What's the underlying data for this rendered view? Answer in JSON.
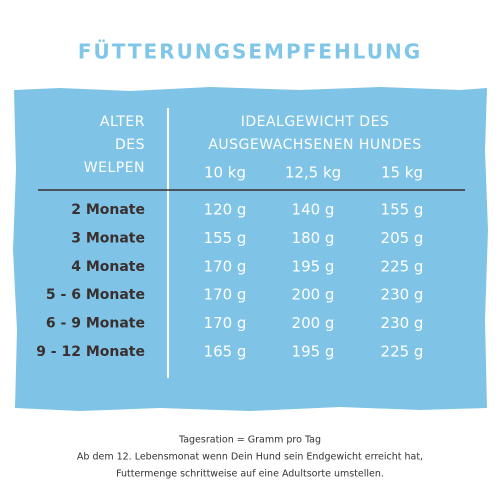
{
  "title": "FÜTTERUNGSEMPFEHLUNG",
  "table": {
    "age_header": [
      "ALTER",
      "DES",
      "WELPEN"
    ],
    "weight_header": [
      "IDEALGEWICHT DES",
      "AUSGEWACHSENEN HUNDES"
    ],
    "weights": [
      "10 kg",
      "12,5 kg",
      "15 kg"
    ],
    "rows": [
      {
        "age": "2 Monate",
        "values": [
          "120 g",
          "140 g",
          "155 g"
        ]
      },
      {
        "age": "3 Monate",
        "values": [
          "155 g",
          "180 g",
          "205 g"
        ]
      },
      {
        "age": "4 Monate",
        "values": [
          "170 g",
          "195 g",
          "225 g"
        ]
      },
      {
        "age": "5 - 6 Monate",
        "values": [
          "170 g",
          "200 g",
          "230 g"
        ]
      },
      {
        "age": "6 - 9 Monate",
        "values": [
          "170 g",
          "200 g",
          "230 g"
        ]
      },
      {
        "age": "9 - 12 Monate",
        "values": [
          "165 g",
          "195 g",
          "225 g"
        ]
      }
    ]
  },
  "footer": [
    "Tagesration = Gramm pro Tag",
    "Ab dem 12. Lebensmonat wenn Dein Hund sein Endgewicht erreicht hat,",
    "Futtermenge schrittweise auf eine Adultsorte umstellen."
  ]
}
